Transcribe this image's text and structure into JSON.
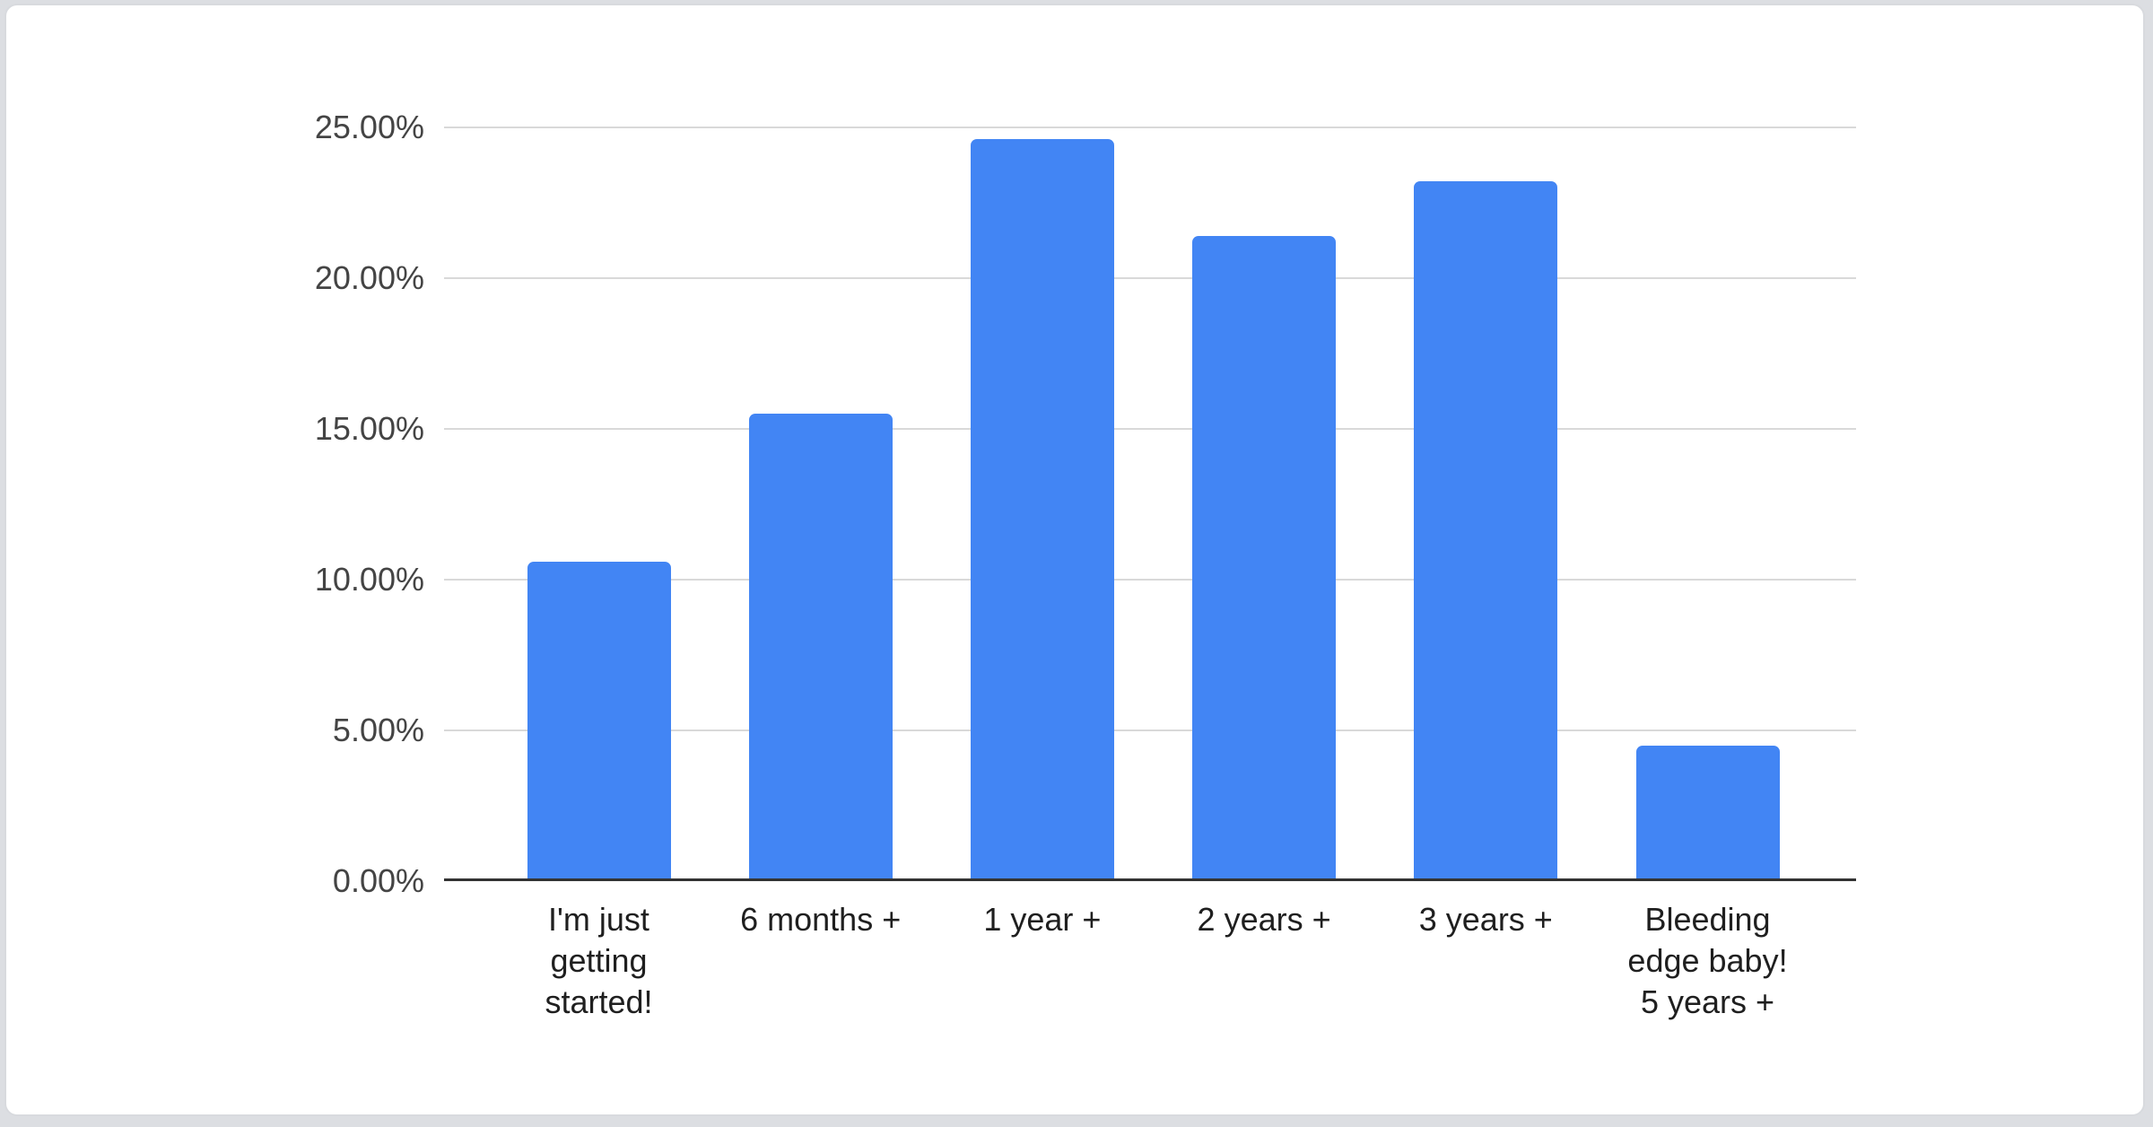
{
  "page": {
    "background": "#dcdee2"
  },
  "card": {
    "background": "#ffffff",
    "border_color": "#d8dade"
  },
  "chart_data": {
    "type": "bar",
    "title": "",
    "xlabel": "",
    "ylabel": "",
    "categories": [
      "I'm just getting started!",
      "6 months +",
      "1 year +",
      "2 years +",
      "3 years +",
      "Bleeding edge baby! 5 years +"
    ],
    "category_lines": [
      [
        "I'm just",
        "getting",
        "started!"
      ],
      [
        "6 months +"
      ],
      [
        "1 year +"
      ],
      [
        "2 years +"
      ],
      [
        "3 years +"
      ],
      [
        "Bleeding",
        "edge baby!",
        "5 years +"
      ]
    ],
    "values": [
      10.6,
      15.5,
      24.6,
      21.4,
      23.2,
      4.5
    ],
    "unit": "%",
    "ylim": [
      0,
      25
    ],
    "y_tick_values": [
      0,
      5,
      10,
      15,
      20,
      25
    ],
    "y_tick_labels": [
      "0.00%",
      "5.00%",
      "10.00%",
      "15.00%",
      "20.00%",
      "25.00%"
    ],
    "grid": true,
    "legend_position": "none",
    "bar_color": "#4285f4",
    "gridline_color": "#d9d9d9",
    "axis_line_color": "#333333",
    "y_label_color": "#444444",
    "x_label_color": "#1f1f1f"
  }
}
